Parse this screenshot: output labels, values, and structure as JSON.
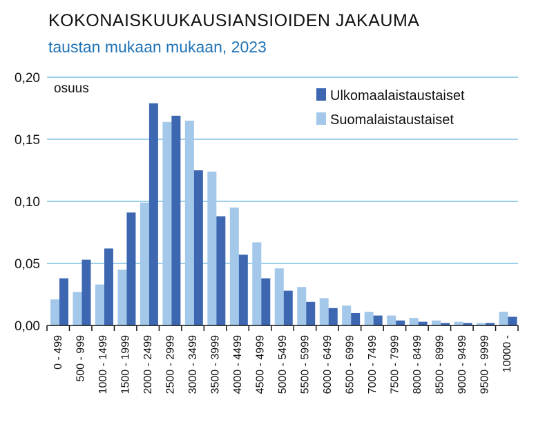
{
  "header": {
    "title": "KOKONAISKUUKAUSIANSIOIDEN JAKAUMA",
    "subtitle": "taustan mukaan mukaan, 2023"
  },
  "colors": {
    "ulkomaalaistaustaiset": "#3d67b0",
    "suomalaistaustaiset": "#a3c8ea",
    "gridline": "#3b9ed6",
    "axis": "#111111"
  },
  "chart_data": {
    "type": "bar",
    "title": "KOKONAISKUUKAUSIANSIOIDEN JAKAUMA",
    "subtitle": "taustan mukaan mukaan, 2023",
    "ylabel": "osuus",
    "xlabel": "",
    "ylim": [
      0,
      0.2
    ],
    "yticks": [
      "0,00",
      "0,05",
      "0,10",
      "0,15",
      "0,20"
    ],
    "grid": true,
    "legend_position": "top-right",
    "categories": [
      "0 - 499",
      "500 - 999",
      "1000 - 1499",
      "1500 - 1999",
      "2000 - 2499",
      "2500 - 2999",
      "3000 - 3499",
      "3500 - 3999",
      "4000 - 4499",
      "4500 - 4999",
      "5000 - 5499",
      "5500 - 5999",
      "6000 - 6499",
      "6500 - 6999",
      "7000 - 7499",
      "7500 - 7999",
      "8000 - 8499",
      "8500 - 8999",
      "9000 - 9499",
      "9500 - 9999",
      "10000 -"
    ],
    "series": [
      {
        "name": "Suomalaistaustaiset",
        "values": [
          0.021,
          0.027,
          0.033,
          0.045,
          0.099,
          0.164,
          0.165,
          0.124,
          0.095,
          0.067,
          0.046,
          0.031,
          0.022,
          0.016,
          0.011,
          0.008,
          0.006,
          0.004,
          0.003,
          0.002,
          0.011
        ]
      },
      {
        "name": "Ulkomaalaistaustaiset",
        "values": [
          0.038,
          0.053,
          0.062,
          0.091,
          0.179,
          0.169,
          0.125,
          0.088,
          0.057,
          0.038,
          0.028,
          0.019,
          0.014,
          0.01,
          0.008,
          0.004,
          0.003,
          0.002,
          0.002,
          0.002,
          0.007
        ]
      }
    ],
    "legend": [
      "Ulkomaalaistaustaiset",
      "Suomalaistaustaiset"
    ]
  }
}
